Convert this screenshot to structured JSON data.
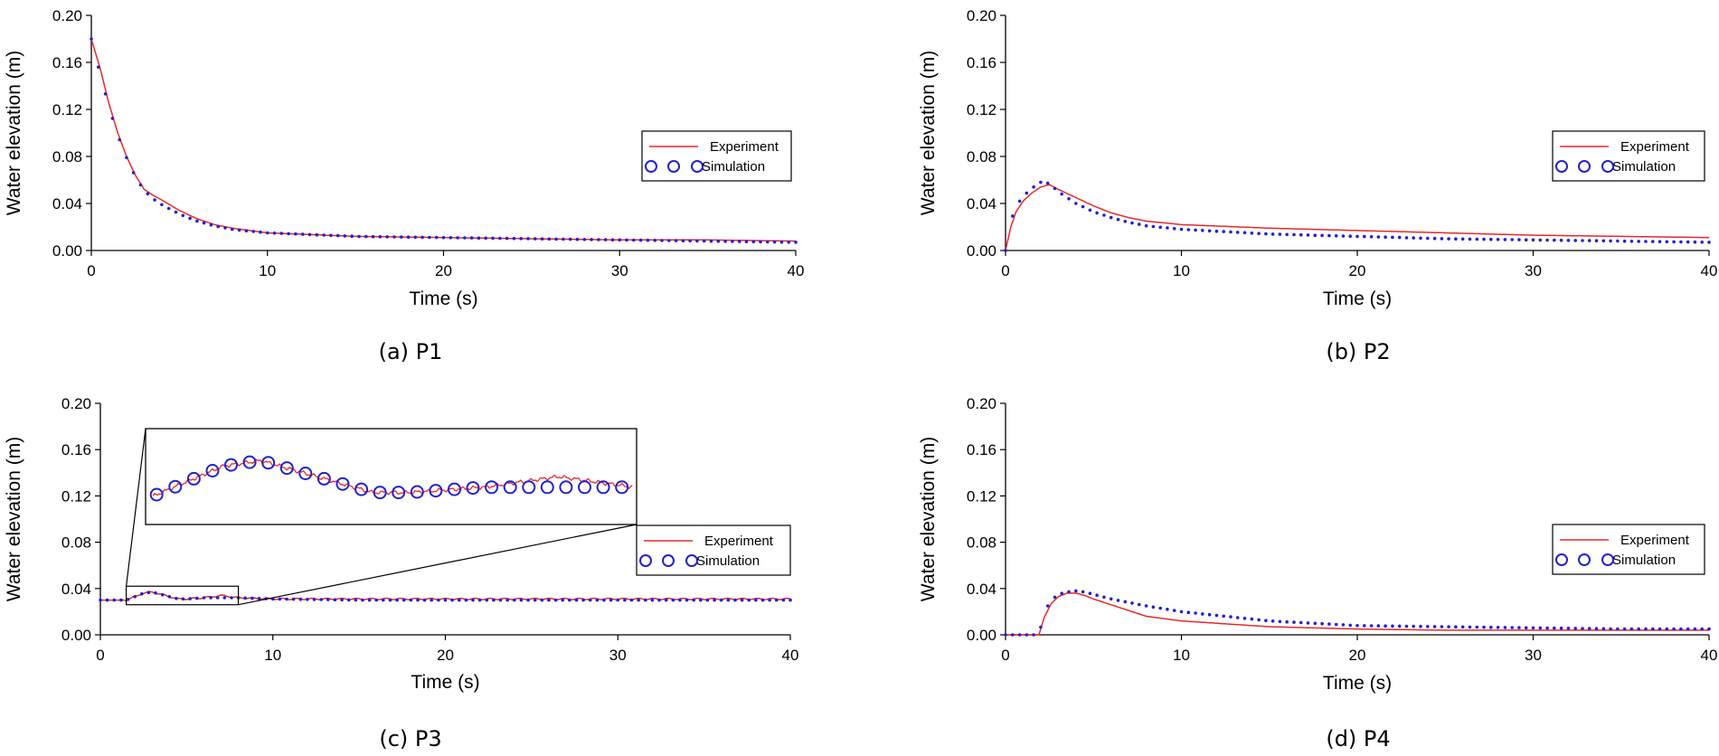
{
  "colors": {
    "experiment": "#e8282b",
    "simulation": "#2222cc",
    "axis": "#000000"
  },
  "chart_data": [
    {
      "type": "line",
      "caption": "(a) P1",
      "xlabel": "Time (s)",
      "ylabel": "Water elevation (m)",
      "xlim": [
        0,
        40
      ],
      "ylim": [
        0,
        0.2
      ],
      "xticks": [
        "0",
        "10",
        "20",
        "30",
        "40"
      ],
      "yticks": [
        "0.00",
        "0.04",
        "0.08",
        "0.12",
        "0.16",
        "0.20"
      ],
      "legend_position": "right",
      "series": [
        {
          "name": "Experiment",
          "style": "line",
          "x": [
            0,
            0.5,
            1,
            1.5,
            2,
            2.5,
            3,
            3.5,
            4,
            5,
            6,
            7,
            8,
            10,
            15,
            20,
            25,
            30,
            35,
            40
          ],
          "y": [
            0.18,
            0.155,
            0.125,
            0.1,
            0.08,
            0.064,
            0.052,
            0.047,
            0.043,
            0.034,
            0.027,
            0.022,
            0.019,
            0.015,
            0.012,
            0.011,
            0.01,
            0.009,
            0.009,
            0.008
          ]
        },
        {
          "name": "Simulation",
          "style": "markers",
          "x": [
            0,
            0.5,
            1,
            1.5,
            2,
            2.5,
            3,
            3.5,
            4,
            5,
            6,
            7,
            8,
            10,
            15,
            20,
            25,
            30,
            35,
            40
          ],
          "y": [
            0.18,
            0.15,
            0.122,
            0.098,
            0.079,
            0.063,
            0.051,
            0.044,
            0.039,
            0.031,
            0.025,
            0.021,
            0.018,
            0.015,
            0.012,
            0.011,
            0.01,
            0.009,
            0.008,
            0.007
          ]
        }
      ]
    },
    {
      "type": "line",
      "caption": "(b) P2",
      "xlabel": "Time (s)",
      "ylabel": "Water elevation (m)",
      "xlim": [
        0,
        40
      ],
      "ylim": [
        0,
        0.2
      ],
      "xticks": [
        "0",
        "10",
        "20",
        "30",
        "40"
      ],
      "yticks": [
        "0.00",
        "0.04",
        "0.08",
        "0.12",
        "0.16",
        "0.20"
      ],
      "legend_position": "right",
      "series": [
        {
          "name": "Experiment",
          "style": "line",
          "x": [
            0,
            0.3,
            0.6,
            1,
            1.5,
            2,
            2.5,
            3,
            4,
            5,
            6,
            7,
            8,
            10,
            15,
            20,
            25,
            30,
            35,
            40
          ],
          "y": [
            0,
            0.02,
            0.033,
            0.042,
            0.049,
            0.054,
            0.056,
            0.052,
            0.045,
            0.038,
            0.032,
            0.028,
            0.025,
            0.022,
            0.019,
            0.017,
            0.015,
            0.013,
            0.012,
            0.011
          ]
        },
        {
          "name": "Simulation",
          "style": "markers",
          "x": [
            0,
            0.3,
            0.6,
            1,
            1.5,
            2,
            2.5,
            3,
            4,
            5,
            6,
            7,
            8,
            10,
            15,
            20,
            25,
            30,
            35,
            40
          ],
          "y": [
            0,
            0.025,
            0.038,
            0.046,
            0.053,
            0.058,
            0.057,
            0.05,
            0.04,
            0.033,
            0.028,
            0.024,
            0.021,
            0.018,
            0.014,
            0.012,
            0.01,
            0.009,
            0.008,
            0.007
          ]
        }
      ]
    },
    {
      "type": "line",
      "caption": "(c) P3",
      "xlabel": "Time (s)",
      "ylabel": "Water elevation (m)",
      "xlim": [
        0,
        40
      ],
      "ylim": [
        0,
        0.2
      ],
      "xticks": [
        "0",
        "10",
        "20",
        "30",
        "40"
      ],
      "yticks": [
        "0.00",
        "0.04",
        "0.08",
        "0.12",
        "0.16",
        "0.20"
      ],
      "legend_position": "right",
      "series": [
        {
          "name": "Experiment",
          "style": "line",
          "x": [
            0,
            1.5,
            2,
            2.5,
            3,
            3.5,
            4,
            4.5,
            5,
            6,
            7,
            8,
            10,
            15,
            20,
            25,
            30,
            35,
            40
          ],
          "y": [
            0.03,
            0.03,
            0.033,
            0.036,
            0.037,
            0.035,
            0.033,
            0.031,
            0.031,
            0.032,
            0.034,
            0.032,
            0.031,
            0.031,
            0.031,
            0.031,
            0.031,
            0.031,
            0.031
          ]
        },
        {
          "name": "Simulation",
          "style": "markers",
          "x": [
            0,
            1.5,
            2,
            2.5,
            3,
            3.5,
            4,
            4.5,
            5,
            6,
            7,
            8,
            10,
            15,
            20,
            25,
            30,
            35,
            40
          ],
          "y": [
            0.03,
            0.03,
            0.033,
            0.036,
            0.037,
            0.035,
            0.033,
            0.031,
            0.031,
            0.032,
            0.032,
            0.032,
            0.031,
            0.03,
            0.03,
            0.03,
            0.03,
            0.03,
            0.03
          ]
        }
      ],
      "inset": {
        "x_range": [
          1.5,
          8
        ],
        "y_range": [
          0.026,
          0.042
        ]
      }
    },
    {
      "type": "line",
      "caption": "(d) P4",
      "xlabel": "Time (s)",
      "ylabel": "Water elevation (m)",
      "xlim": [
        0,
        40
      ],
      "ylim": [
        0,
        0.2
      ],
      "xticks": [
        "0",
        "10",
        "20",
        "30",
        "40"
      ],
      "yticks": [
        "0.00",
        "0.04",
        "0.08",
        "0.12",
        "0.16",
        "0.20"
      ],
      "legend_position": "right",
      "series": [
        {
          "name": "Experiment",
          "style": "line",
          "x": [
            0,
            1.9,
            2.2,
            2.6,
            3,
            3.5,
            4,
            4.5,
            5,
            6,
            7,
            8,
            10,
            15,
            20,
            25,
            30,
            35,
            40
          ],
          "y": [
            0,
            0,
            0.015,
            0.027,
            0.033,
            0.036,
            0.036,
            0.034,
            0.031,
            0.026,
            0.021,
            0.016,
            0.012,
            0.007,
            0.005,
            0.004,
            0.004,
            0.004,
            0.004
          ]
        },
        {
          "name": "Simulation",
          "style": "markers",
          "x": [
            0,
            1.9,
            2.2,
            2.6,
            3,
            3.5,
            4,
            4.5,
            5,
            6,
            7,
            8,
            10,
            15,
            20,
            25,
            30,
            35,
            40
          ],
          "y": [
            0,
            0,
            0.02,
            0.03,
            0.035,
            0.037,
            0.038,
            0.037,
            0.035,
            0.031,
            0.028,
            0.025,
            0.02,
            0.012,
            0.008,
            0.007,
            0.006,
            0.005,
            0.005
          ]
        }
      ]
    }
  ]
}
